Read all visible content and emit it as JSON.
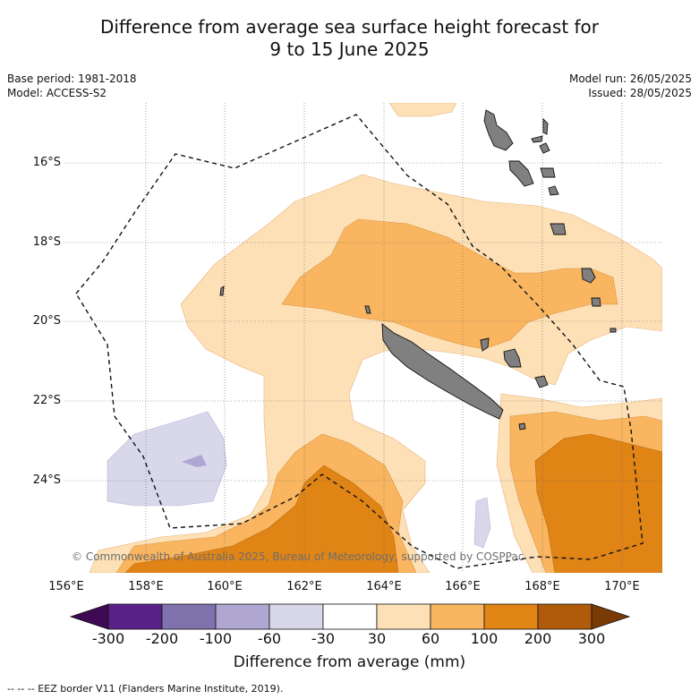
{
  "header": {
    "title_line1": "Difference from average sea surface height forecast for",
    "title_line2": "9 to 15 June 2025",
    "base_period": "Base period: 1981-2018",
    "model": "Model: ACCESS-S2",
    "model_run": "Model run: 26/05/2025",
    "issued": "Issued: 28/05/2025"
  },
  "map": {
    "latitude_labels": [
      "16°S",
      "18°S",
      "20°S",
      "22°S",
      "24°S"
    ],
    "longitude_labels": [
      "156°E",
      "158°E",
      "160°E",
      "162°E",
      "164°E",
      "166°E",
      "168°E",
      "170°E"
    ],
    "credit": "© Commonwealth of Australia 2025, Bureau of Meteorology, supported by COSPPac"
  },
  "colorbar": {
    "ticks": [
      "-300",
      "-200",
      "-100",
      "-60",
      "-30",
      "30",
      "60",
      "100",
      "200",
      "300"
    ],
    "colors": [
      "#3f0a54",
      "#5a2289",
      "#7f72ad",
      "#afa7d1",
      "#d9d8ea",
      "#ffffff",
      "#fde0b6",
      "#f9b55f",
      "#e08416",
      "#b05a0b",
      "#7a3a06"
    ],
    "label": "Difference from average (mm)"
  },
  "legend": {
    "eez": "--  --  -- EEZ border V11 (Flanders Marine Institute, 2019)."
  }
}
